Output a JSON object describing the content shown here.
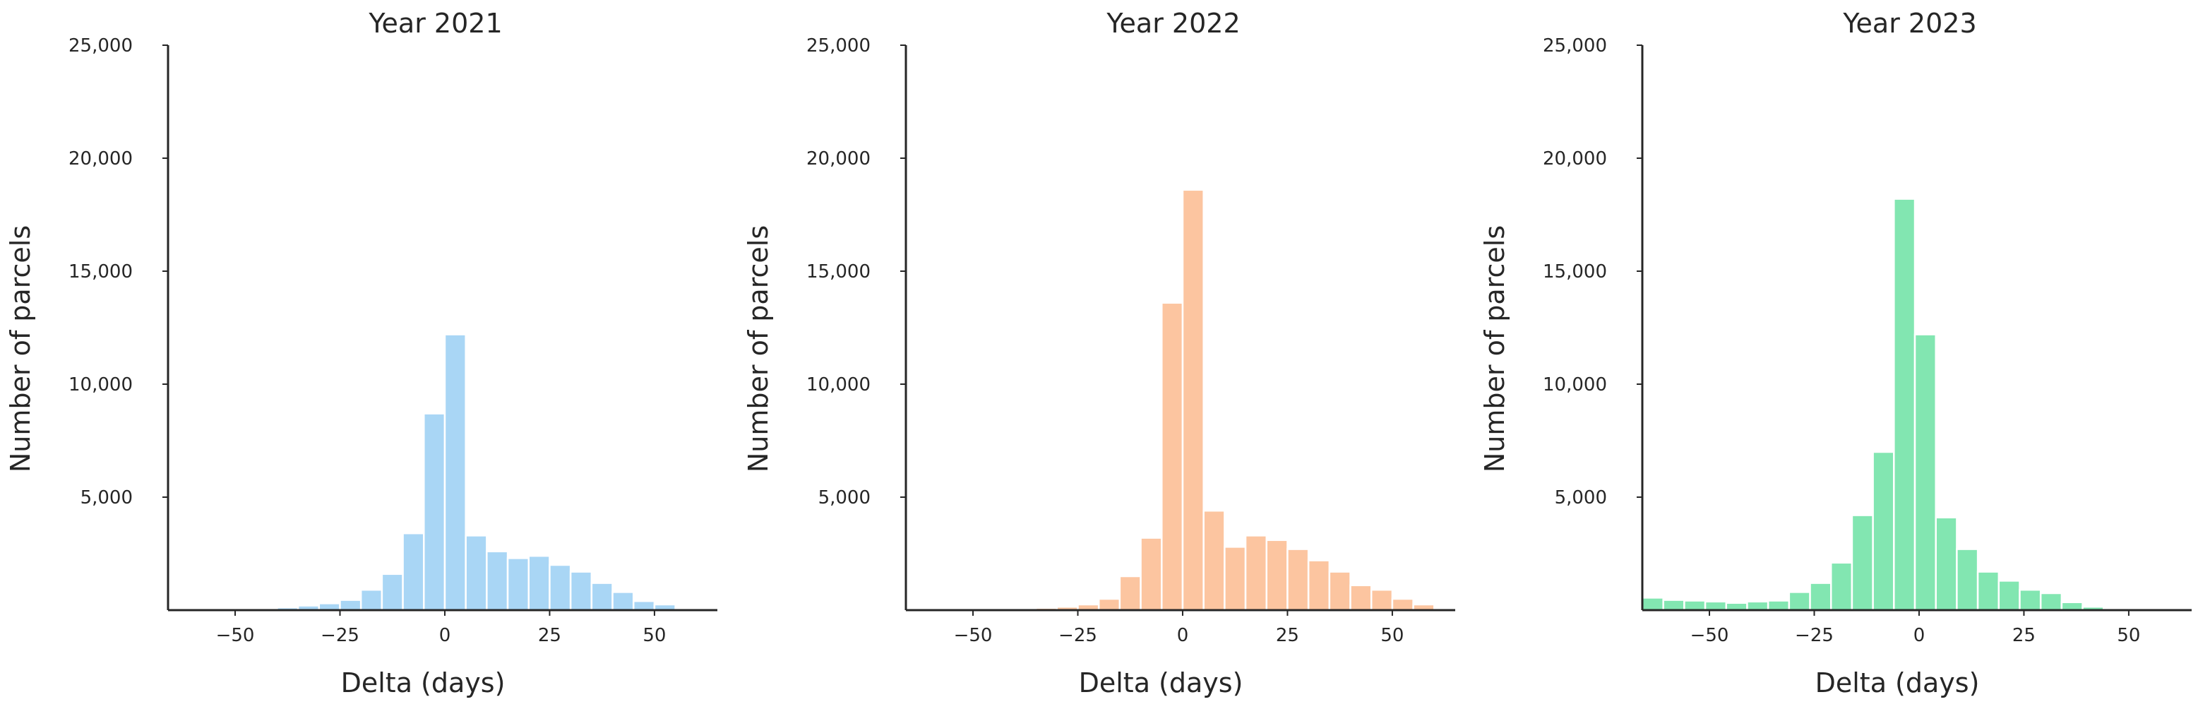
{
  "chart_data": [
    {
      "type": "bar",
      "title": "Year 2021",
      "xlabel": "Delta (days)",
      "ylabel": "Number of parcels",
      "xlim": [
        -66,
        65
      ],
      "ylim": [
        0,
        25000
      ],
      "xticks": [
        -50,
        -25,
        0,
        25,
        50
      ],
      "xtick_labels": [
        "−50",
        "−25",
        "0",
        "25",
        "50"
      ],
      "yticks": [
        5000,
        10000,
        15000,
        20000,
        25000
      ],
      "ytick_labels": [
        "5,000",
        "10,000",
        "15,000",
        "20,000",
        "25,000"
      ],
      "bin_width": 5,
      "bin_starts": [
        -55,
        -50,
        -45,
        -40,
        -35,
        -30,
        -25,
        -20,
        -15,
        -10,
        -5,
        0,
        5,
        10,
        15,
        20,
        25,
        30,
        35,
        40,
        45,
        50,
        55
      ],
      "values": [
        30,
        50,
        80,
        120,
        200,
        300,
        450,
        900,
        1600,
        3400,
        8700,
        12200,
        3300,
        2600,
        2300,
        2400,
        2000,
        1700,
        1200,
        800,
        400,
        250,
        40
      ],
      "color": "#a9d6f5",
      "grid": false
    },
    {
      "type": "bar",
      "title": "Year 2022",
      "xlabel": "Delta (days)",
      "ylabel": "Number of parcels",
      "xlim": [
        -66,
        65
      ],
      "ylim": [
        0,
        25000
      ],
      "xticks": [
        -50,
        -25,
        0,
        25,
        50
      ],
      "xtick_labels": [
        "−50",
        "−25",
        "0",
        "25",
        "50"
      ],
      "yticks": [
        5000,
        10000,
        15000,
        20000,
        25000
      ],
      "ytick_labels": [
        "5,000",
        "10,000",
        "15,000",
        "20,000",
        "25,000"
      ],
      "bin_width": 5,
      "bin_starts": [
        -60,
        -55,
        -50,
        -45,
        -40,
        -35,
        -30,
        -25,
        -20,
        -15,
        -10,
        -5,
        0,
        5,
        10,
        15,
        20,
        25,
        30,
        35,
        40,
        45,
        50,
        55
      ],
      "values": [
        20,
        30,
        40,
        60,
        80,
        100,
        150,
        250,
        500,
        1500,
        3200,
        13600,
        18600,
        4400,
        2800,
        3300,
        3100,
        2700,
        2200,
        1700,
        1100,
        900,
        500,
        250
      ],
      "color": "#fcc5a0",
      "grid": false
    },
    {
      "type": "bar",
      "title": "Year 2023",
      "xlabel": "Delta (days)",
      "ylabel": "Number of parcels",
      "xlim": [
        -66,
        65
      ],
      "ylim": [
        0,
        25000
      ],
      "xticks": [
        -50,
        -25,
        0,
        25,
        50
      ],
      "xtick_labels": [
        "−50",
        "−25",
        "0",
        "25",
        "50"
      ],
      "yticks": [
        5000,
        10000,
        15000,
        20000,
        25000
      ],
      "ytick_labels": [
        "5,000",
        "10,000",
        "15,000",
        "20,000",
        "25,000"
      ],
      "bin_width": 5,
      "bin_starts": [
        -66,
        -61,
        -56,
        -51,
        -46,
        -41,
        -36,
        -31,
        -26,
        -21,
        -16,
        -11,
        -6,
        -1,
        4,
        9,
        14,
        19,
        24,
        29,
        34,
        39,
        44,
        49
      ],
      "values": [
        550,
        450,
        420,
        380,
        320,
        380,
        420,
        800,
        1200,
        2100,
        4200,
        7000,
        18200,
        12200,
        4100,
        2700,
        1700,
        1300,
        900,
        750,
        350,
        150,
        80,
        30
      ],
      "color": "#82e6b1",
      "grid": false
    }
  ]
}
